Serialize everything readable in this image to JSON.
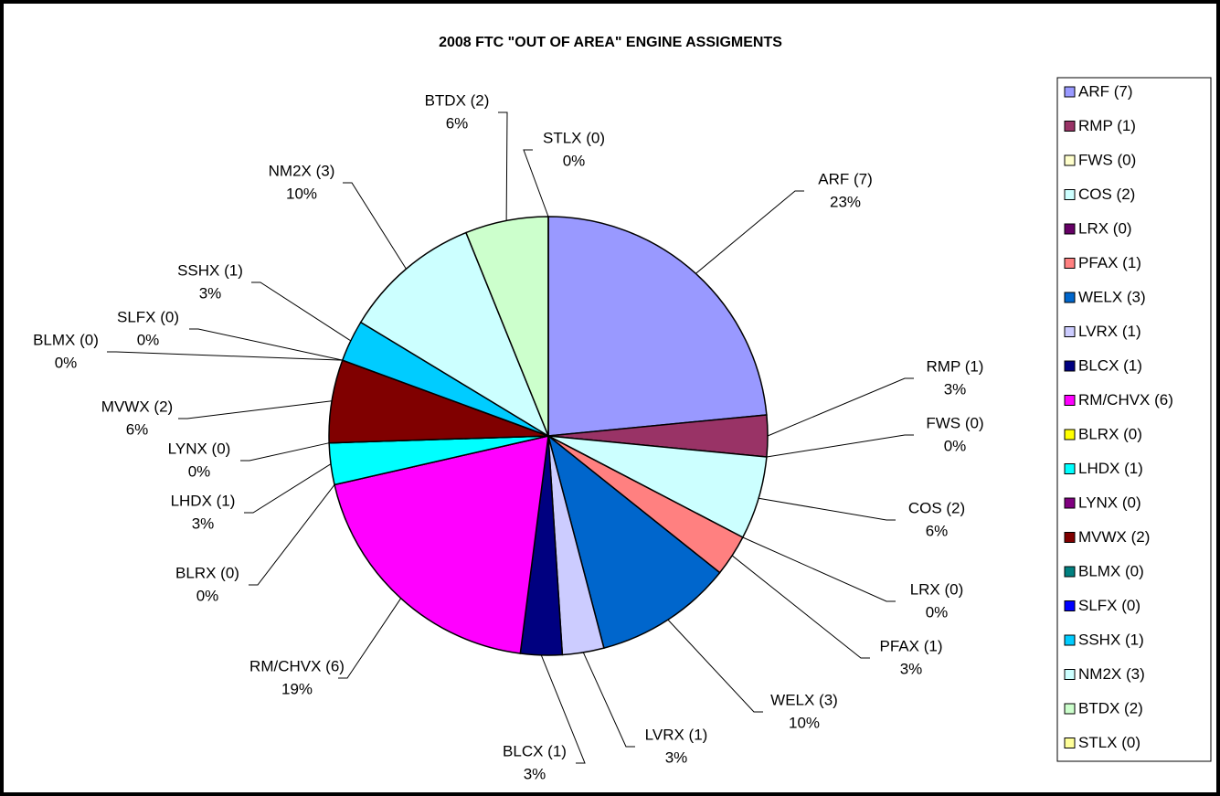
{
  "chart_data": {
    "type": "pie",
    "title": "2008 FTC \"OUT OF AREA\" ENGINE ASSIGMENTS",
    "categories": [
      "ARF (7)",
      "RMP (1)",
      "FWS (0)",
      "COS (2)",
      "LRX (0)",
      "PFAX (1)",
      "WELX (3)",
      "LVRX (1)",
      "BLCX (1)",
      "RM/CHVX (6)",
      "BLRX (0)",
      "LHDX (1)",
      "LYNX (0)",
      "MVWX (2)",
      "BLMX (0)",
      "SLFX (0)",
      "SSHX (1)",
      "NM2X (3)",
      "BTDX (2)",
      "STLX (0)"
    ],
    "values": [
      23,
      3,
      0,
      6,
      0,
      3,
      10,
      3,
      3,
      19,
      0,
      3,
      0,
      6,
      0,
      0,
      3,
      10,
      6,
      0
    ],
    "value_labels": [
      "23%",
      "3%",
      "0%",
      "6%",
      "0%",
      "3%",
      "10%",
      "3%",
      "3%",
      "19%",
      "0%",
      "3%",
      "0%",
      "6%",
      "0%",
      "0%",
      "3%",
      "10%",
      "6%",
      "0%"
    ],
    "colors": [
      "#9999ff",
      "#993366",
      "#ffffcc",
      "#ccffff",
      "#660066",
      "#ff8080",
      "#0066cc",
      "#ccccff",
      "#000080",
      "#ff00ff",
      "#ffff00",
      "#00ffff",
      "#800080",
      "#800000",
      "#008080",
      "#0000ff",
      "#00ccff",
      "#ccffff",
      "#ccffcc",
      "#ffff99"
    ],
    "legend": "right"
  }
}
